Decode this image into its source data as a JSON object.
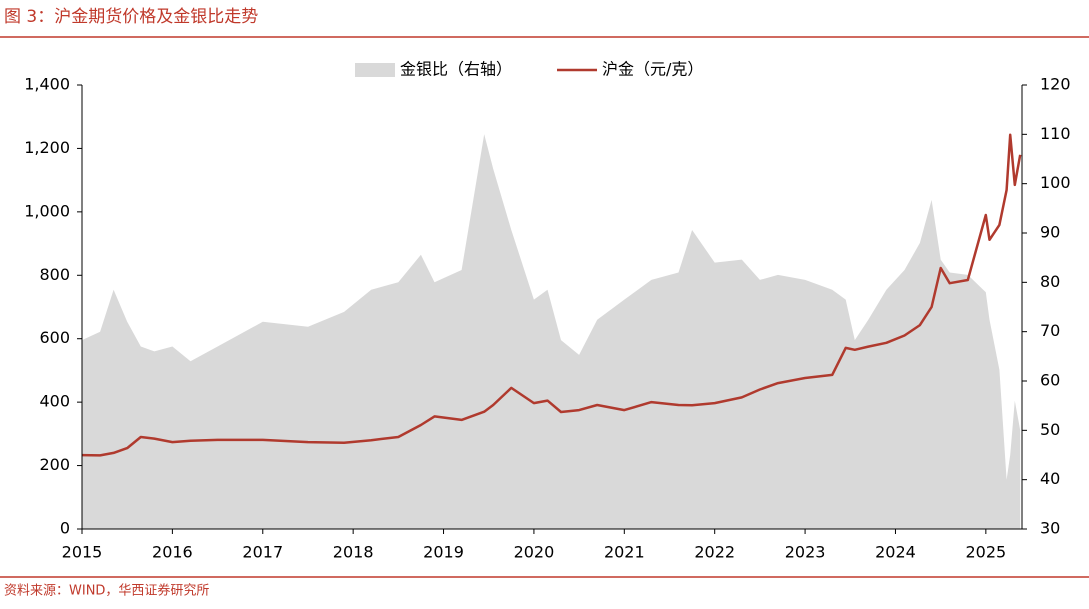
{
  "title": "图 3：沪金期货价格及金银比走势",
  "source": "资料来源：WIND，华西证券研究所",
  "chart_data": {
    "type": "area-line",
    "legend": "top",
    "x": [
      2015,
      2015.2,
      2015.35,
      2015.5,
      2015.65,
      2015.8,
      2016,
      2016.2,
      2016.5,
      2017,
      2017.5,
      2017.9,
      2018.2,
      2018.5,
      2018.75,
      2018.9,
      2019.2,
      2019.45,
      2019.55,
      2019.75,
      2020,
      2020.15,
      2020.3,
      2020.5,
      2020.7,
      2021,
      2021.3,
      2021.6,
      2021.75,
      2022,
      2022.3,
      2022.5,
      2022.7,
      2023,
      2023.3,
      2023.45,
      2023.55,
      2023.7,
      2023.9,
      2024.1,
      2024.27,
      2024.4,
      2024.5,
      2024.6,
      2024.8,
      2025,
      2025.04,
      2025.15,
      2025.23,
      2025.27,
      2025.32,
      2025.38
    ],
    "xlim": [
      2015,
      2025.4
    ],
    "xticks": [
      2015,
      2016,
      2017,
      2018,
      2019,
      2020,
      2021,
      2022,
      2023,
      2024,
      2025
    ],
    "ylim": [
      0,
      1400
    ],
    "yticks": [
      0,
      200,
      400,
      600,
      800,
      {
        "value": 1000,
        "label": "1,000"
      },
      {
        "value": 1200,
        "label": "1,200"
      },
      {
        "value": 1400,
        "label": "1,400"
      }
    ],
    "y2lim": [
      30,
      120
    ],
    "y2ticks": [
      30,
      40,
      50,
      60,
      70,
      80,
      90,
      100,
      110,
      120
    ],
    "series": [
      {
        "name": "金银比（右轴）",
        "type": "area",
        "axis": "y2",
        "color": "#d9d9d9",
        "values": [
          68.3,
          70,
          78.5,
          72,
          67,
          66,
          67,
          64,
          67,
          72,
          71,
          74,
          78.5,
          80,
          85.6,
          80,
          82.5,
          110,
          103,
          90.6,
          76.5,
          78.5,
          68.3,
          65.3,
          72.4,
          76.5,
          80.5,
          82,
          90.6,
          84,
          84.6,
          80.5,
          81.5,
          80.5,
          78.5,
          76.5,
          68.3,
          72.4,
          78.5,
          82.5,
          88,
          96.7,
          84.6,
          82,
          81.5,
          78,
          72.4,
          62.3,
          40,
          45,
          56,
          50
        ]
      },
      {
        "name": "沪金（元/克）",
        "type": "line",
        "axis": "y",
        "color": "#b03a2e",
        "values": [
          233,
          232,
          240,
          255,
          290,
          285,
          274,
          278,
          281,
          281,
          274,
          272,
          280,
          290,
          328,
          355,
          344,
          370,
          391,
          445,
          397,
          405,
          369,
          375,
          391,
          375,
          400,
          391,
          390,
          397,
          415,
          440,
          460,
          476,
          486,
          571,
          565,
          575,
          587,
          610,
          643,
          700,
          823,
          775,
          785,
          990,
          912,
          959,
          1069,
          1243,
          1085,
          1180
        ]
      }
    ]
  }
}
